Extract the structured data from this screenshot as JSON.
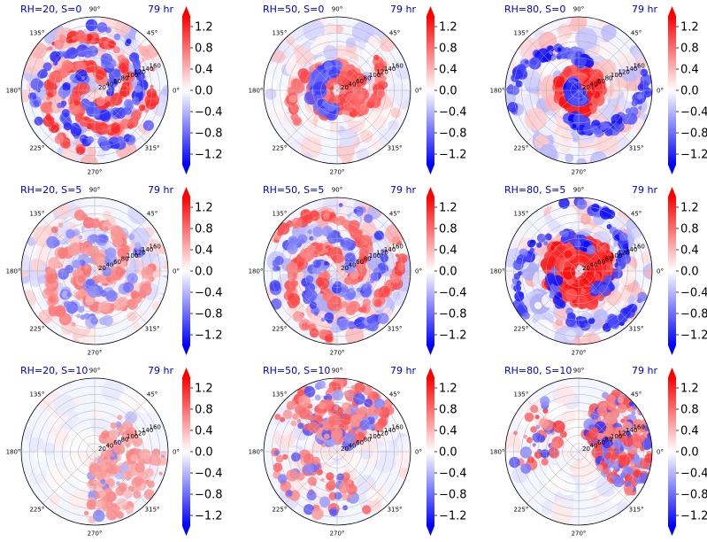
{
  "figure": {
    "rh_values": [
      20,
      50,
      80
    ],
    "s_values": [
      0,
      5,
      10
    ],
    "time_label": "79 hr",
    "panel_titles": [
      [
        "RH=20, S=0",
        "RH=50, S=0",
        "RH=80, S=0"
      ],
      [
        "RH=20, S=5",
        "RH=50, S=5",
        "RH=80, S=5"
      ],
      [
        "RH=20, S=10",
        "RH=50, S=10",
        "RH=80, S=10"
      ]
    ],
    "title_color": "#0000cc"
  },
  "chart_data": {
    "type": "heatmap",
    "projection": "polar",
    "rows": 3,
    "cols": 3,
    "angle_labels": [
      "90°",
      "45°",
      "0°",
      "315°",
      "270°",
      "225°",
      "180°",
      "135°"
    ],
    "angle_values_deg": [
      90,
      45,
      0,
      315,
      270,
      225,
      180,
      135
    ],
    "radial_ticks": [
      20,
      40,
      60,
      80,
      100,
      120,
      140,
      160
    ],
    "radial_max": 180,
    "radial_label_angle_deg": 22.5,
    "colorbar": {
      "cmap": "bwr",
      "vmin": -1.4,
      "vmax": 1.4,
      "extend": "both",
      "ticks": [
        1.2,
        0.8,
        0.4,
        0.0,
        -0.4,
        -0.8,
        -1.2
      ],
      "tick_labels": [
        "1.2",
        "0.8",
        "0.4",
        "0.0",
        "−0.4",
        "−0.8",
        "−1.2"
      ],
      "low_color": "#0000ff",
      "mid_color": "#ffffff",
      "high_color": "#ff0000"
    },
    "panels": [
      {
        "title": "RH=20, S=0",
        "time": "79 hr",
        "rh": 20,
        "s": 0,
        "pattern": "spiral-bands",
        "intensity": 0.9
      },
      {
        "title": "RH=50, S=0",
        "time": "79 hr",
        "rh": 50,
        "s": 0,
        "pattern": "compact-ring",
        "intensity": 0.8
      },
      {
        "title": "RH=80, S=0",
        "time": "79 hr",
        "rh": 80,
        "s": 0,
        "pattern": "eyewall-ring",
        "intensity": 1.0
      },
      {
        "title": "RH=20, S=5",
        "time": "79 hr",
        "rh": 20,
        "s": 5,
        "pattern": "scattered-spiral",
        "intensity": 0.6
      },
      {
        "title": "RH=50, S=5",
        "time": "79 hr",
        "rh": 50,
        "s": 5,
        "pattern": "asymmetric-bands",
        "intensity": 0.8
      },
      {
        "title": "RH=80, S=5",
        "time": "79 hr",
        "rh": 80,
        "s": 5,
        "pattern": "broad-ring",
        "intensity": 1.0
      },
      {
        "title": "RH=20, S=10",
        "time": "79 hr",
        "rh": 20,
        "s": 10,
        "pattern": "sheared-southeast",
        "intensity": 0.5
      },
      {
        "title": "RH=50, S=10",
        "time": "79 hr",
        "rh": 50,
        "s": 10,
        "pattern": "sheared-north",
        "intensity": 0.7
      },
      {
        "title": "RH=80, S=10",
        "time": "79 hr",
        "rh": 80,
        "s": 10,
        "pattern": "sheared-east",
        "intensity": 0.8
      }
    ]
  }
}
